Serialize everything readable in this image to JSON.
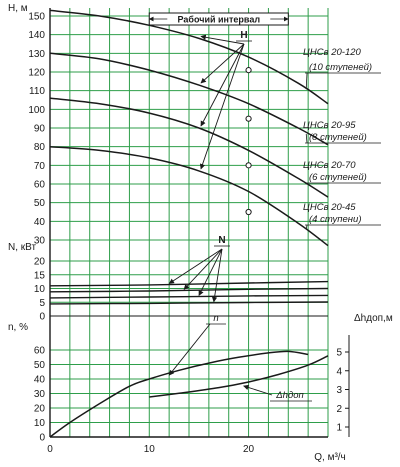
{
  "chart_data": [
    {
      "type": "line",
      "panel": "head",
      "ylabel": "H, м",
      "yticks": [
        "30",
        "40",
        "50",
        "60",
        "70",
        "80",
        "90",
        "100",
        "110",
        "120",
        "130",
        "140",
        "150"
      ],
      "ylim": [
        25,
        155
      ],
      "xlim": [
        0,
        28
      ],
      "operating_range_label": "Рабочий интервал",
      "operating_range": [
        10,
        24
      ],
      "curve_marker": "H",
      "series": [
        {
          "name": "ЦНСв 20-120",
          "sub": "(10 ступеней)",
          "points": [
            [
              0,
              153
            ],
            [
              5,
              150
            ],
            [
              10,
              145
            ],
            [
              15,
              138
            ],
            [
              20,
              128
            ],
            [
              25,
              114
            ],
            [
              28,
              103
            ]
          ],
          "operating_point": [
            20,
            121
          ]
        },
        {
          "name": "ЦНСв 20-95",
          "sub": "(8 ступеней)",
          "points": [
            [
              0,
              130
            ],
            [
              5,
              127
            ],
            [
              10,
              121
            ],
            [
              15,
              113
            ],
            [
              20,
              103
            ],
            [
              25,
              90
            ],
            [
              28,
              81
            ]
          ],
          "operating_point": [
            20,
            95
          ]
        },
        {
          "name": "ЦНСв 20-70",
          "sub": "(6 ступеней)",
          "points": [
            [
              0,
              106
            ],
            [
              5,
              103
            ],
            [
              10,
              98
            ],
            [
              15,
              90
            ],
            [
              20,
              78
            ],
            [
              25,
              63
            ],
            [
              28,
              53
            ]
          ],
          "operating_point": [
            20,
            70
          ]
        },
        {
          "name": "ЦНСв 20-45",
          "sub": "(4 ступени)",
          "points": [
            [
              0,
              80
            ],
            [
              5,
              78
            ],
            [
              10,
              74
            ],
            [
              15,
              67
            ],
            [
              20,
              56
            ],
            [
              25,
              39
            ],
            [
              28,
              27
            ]
          ],
          "operating_point": [
            20,
            45
          ]
        }
      ]
    },
    {
      "type": "line",
      "panel": "power",
      "ylabel": "N, кВт",
      "yticks": [
        "0",
        "5",
        "10",
        "15",
        "20"
      ],
      "ylim": [
        0,
        22
      ],
      "curve_marker": "N",
      "series": [
        {
          "values": [
            [
              0,
              11.0
            ],
            [
              10,
              11.3
            ],
            [
              20,
              12.0
            ],
            [
              28,
              12.5
            ]
          ]
        },
        {
          "values": [
            [
              0,
              8.8
            ],
            [
              10,
              9.1
            ],
            [
              20,
              9.7
            ],
            [
              28,
              10.0
            ]
          ]
        },
        {
          "values": [
            [
              0,
              6.6
            ],
            [
              10,
              6.9
            ],
            [
              20,
              7.3
            ],
            [
              28,
              7.5
            ]
          ]
        },
        {
          "values": [
            [
              0,
              4.4
            ],
            [
              10,
              4.6
            ],
            [
              20,
              4.9
            ],
            [
              28,
              5.1
            ]
          ]
        }
      ]
    },
    {
      "type": "line",
      "panel": "efficiency",
      "ylabel": "n, %",
      "xlabel": "Q, м³/ч",
      "xticks": [
        "0",
        "10",
        "20"
      ],
      "yticks": [
        "0",
        "10",
        "20",
        "30",
        "40",
        "50",
        "60"
      ],
      "ylim": [
        0,
        65
      ],
      "y2label": "Δhдоп,м",
      "y2ticks": [
        "1",
        "2",
        "3",
        "4",
        "5"
      ],
      "y2lim": [
        0.4,
        5.6
      ],
      "series": [
        {
          "name": "n",
          "values": [
            [
              0,
              0
            ],
            [
              2,
              10
            ],
            [
              5,
              23
            ],
            [
              8,
              35
            ],
            [
              10,
              40
            ],
            [
              13,
              46
            ],
            [
              16,
              51
            ],
            [
              19,
              55
            ],
            [
              22,
              58
            ],
            [
              24,
              59
            ],
            [
              26,
              57
            ]
          ]
        },
        {
          "name": "Δhдоп",
          "axis": "right",
          "values": [
            [
              10,
              2.6
            ],
            [
              13,
              2.8
            ],
            [
              17,
              3.1
            ],
            [
              20,
              3.4
            ],
            [
              23,
              3.8
            ],
            [
              26,
              4.3
            ],
            [
              28,
              4.8
            ]
          ]
        }
      ]
    }
  ]
}
